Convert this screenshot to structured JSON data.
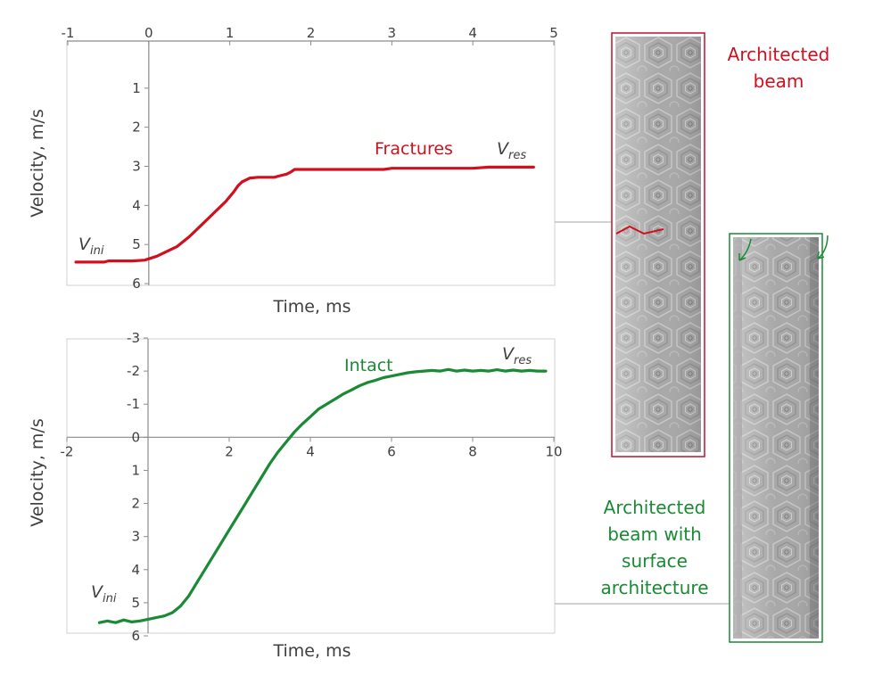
{
  "colors": {
    "fracture": "#d0101e",
    "intact": "#1a8a34",
    "axis": "#8c8c8c",
    "text": "#404040",
    "connector": "#a6a6a6"
  },
  "chart_data": [
    {
      "type": "line",
      "x_tick_labels": [
        "-1",
        "0",
        "1",
        "2",
        "3",
        "4",
        "5"
      ],
      "y_tick_labels": [
        "1",
        "2",
        "3",
        "4",
        "5",
        "6"
      ],
      "xlabel": "Time, ms",
      "ylabel": "Velocity, m/s",
      "xlim": [
        -1,
        5
      ],
      "ylim": [
        0,
        6
      ],
      "y_inverted": true,
      "x_axis_at_top": true,
      "annotations": {
        "series_label": "Fractures",
        "v_ini_base": "V",
        "v_ini_sub": "ini",
        "v_res_base": "V",
        "v_res_sub": "res"
      },
      "series": [
        {
          "x": [
            -0.9,
            -0.55,
            -0.5,
            -0.2,
            -0.05,
            0.1,
            0.2,
            0.35,
            0.5,
            0.65,
            0.8,
            0.9,
            0.95,
            1.05,
            1.1,
            1.15,
            1.25,
            1.35,
            1.45,
            1.55,
            1.6,
            1.7,
            1.75,
            1.8,
            2.5,
            2.9,
            3.0,
            3.5,
            3.8,
            4.0,
            4.2,
            4.5,
            4.75
          ],
          "y": [
            5.45,
            5.45,
            5.42,
            5.42,
            5.4,
            5.3,
            5.2,
            5.05,
            4.8,
            4.5,
            4.2,
            4.0,
            3.9,
            3.65,
            3.5,
            3.4,
            3.3,
            3.28,
            3.28,
            3.28,
            3.25,
            3.2,
            3.15,
            3.08,
            3.08,
            3.08,
            3.05,
            3.05,
            3.05,
            3.05,
            3.02,
            3.02,
            3.02
          ]
        }
      ]
    },
    {
      "type": "line",
      "x_tick_labels": [
        "-2",
        "2",
        "4",
        "6",
        "8",
        "10"
      ],
      "y_tick_labels": [
        "-3",
        "-2",
        "-1",
        "0",
        "1",
        "2",
        "3",
        "4",
        "5",
        "6"
      ],
      "xlabel": "Time, ms",
      "ylabel": "Velocity, m/s",
      "xlim": [
        -2,
        10
      ],
      "ylim": [
        -3,
        6
      ],
      "y_inverted": true,
      "annotations": {
        "series_label": "Intact",
        "v_ini_base": "V",
        "v_ini_sub": "ini",
        "v_res_base": "V",
        "v_res_sub": "res"
      },
      "series": [
        {
          "x": [
            -1.2,
            -1.0,
            -0.8,
            -0.6,
            -0.4,
            -0.2,
            0.0,
            0.2,
            0.4,
            0.6,
            0.8,
            1.0,
            1.2,
            1.4,
            1.6,
            1.8,
            2.0,
            2.2,
            2.4,
            2.6,
            2.8,
            3.0,
            3.2,
            3.4,
            3.6,
            3.8,
            4.0,
            4.2,
            4.4,
            4.6,
            4.8,
            5.0,
            5.2,
            5.4,
            5.6,
            5.8,
            6.0,
            6.2,
            6.4,
            6.6,
            6.8,
            7.0,
            7.2,
            7.4,
            7.6,
            7.8,
            8.0,
            8.2,
            8.4,
            8.6,
            8.8,
            9.0,
            9.2,
            9.4,
            9.6,
            9.8
          ],
          "y": [
            5.6,
            5.55,
            5.6,
            5.52,
            5.58,
            5.55,
            5.5,
            5.45,
            5.4,
            5.3,
            5.1,
            4.8,
            4.4,
            4.0,
            3.6,
            3.2,
            2.8,
            2.4,
            2.0,
            1.6,
            1.2,
            0.8,
            0.45,
            0.15,
            -0.15,
            -0.4,
            -0.62,
            -0.85,
            -1.0,
            -1.15,
            -1.3,
            -1.42,
            -1.55,
            -1.65,
            -1.72,
            -1.8,
            -1.85,
            -1.9,
            -1.95,
            -1.98,
            -2.0,
            -2.02,
            -2.0,
            -2.05,
            -2.0,
            -2.03,
            -2.0,
            -2.02,
            -2.0,
            -2.04,
            -2.0,
            -2.03,
            -2.0,
            -2.02,
            -2.0,
            -2.0
          ]
        }
      ]
    }
  ],
  "images": {
    "top": {
      "caption": [
        "Architected",
        "beam"
      ]
    },
    "bottom": {
      "caption": [
        "Architected",
        "beam with",
        "surface",
        "architecture"
      ]
    }
  }
}
